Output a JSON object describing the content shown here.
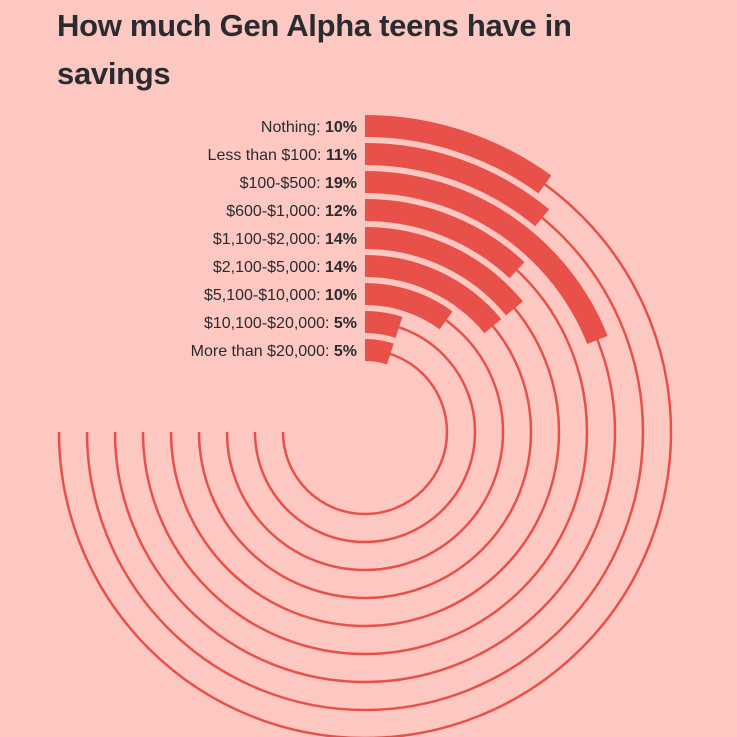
{
  "chart_data": {
    "type": "radial-bar",
    "title": "How much Gen Alpha teens have in savings",
    "categories": [
      "Nothing",
      "Less than $100",
      "$100-$500",
      "$600-$1,000",
      "$1,100-$2,000",
      "$2,100-$5,000",
      "$5,100-$10,000",
      "$10,100-$20,000",
      "More than $20,000"
    ],
    "values": [
      10,
      11,
      19,
      12,
      14,
      14,
      10,
      5,
      5
    ],
    "value_labels": [
      "10%",
      "11%",
      "19%",
      "12%",
      "14%",
      "14%",
      "10%",
      "5%",
      "5%"
    ],
    "unit": "%",
    "full_circle_value": 100,
    "track_extent_value": 75,
    "grid": false,
    "legend": "none",
    "colors": {
      "background": "#fdc8c2",
      "bar": "#e8514a",
      "text": "#2a2b30"
    }
  }
}
